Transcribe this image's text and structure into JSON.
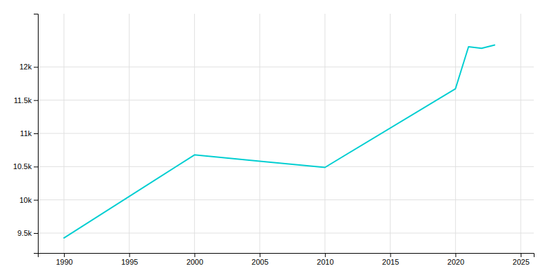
{
  "chart_data": {
    "type": "line",
    "x": [
      1990,
      2000,
      2005,
      2010,
      2020,
      2021,
      2022,
      2023
    ],
    "values": [
      9427,
      10676,
      10580,
      10488,
      11672,
      12303,
      12280,
      12330
    ],
    "color": "#00CED1",
    "xlim": [
      1988,
      2026
    ],
    "xticks": [
      1990,
      1995,
      2000,
      2005,
      2010,
      2015,
      2020,
      2025
    ],
    "ylim": [
      9200,
      12800
    ],
    "yticks": [
      {
        "value": 9500,
        "label": "9.5k"
      },
      {
        "value": 10000,
        "label": "10k"
      },
      {
        "value": 10500,
        "label": "10.5k"
      },
      {
        "value": 11000,
        "label": "11k"
      },
      {
        "value": 11500,
        "label": "11.5k"
      },
      {
        "value": 12000,
        "label": "12k"
      }
    ],
    "grid": true
  }
}
